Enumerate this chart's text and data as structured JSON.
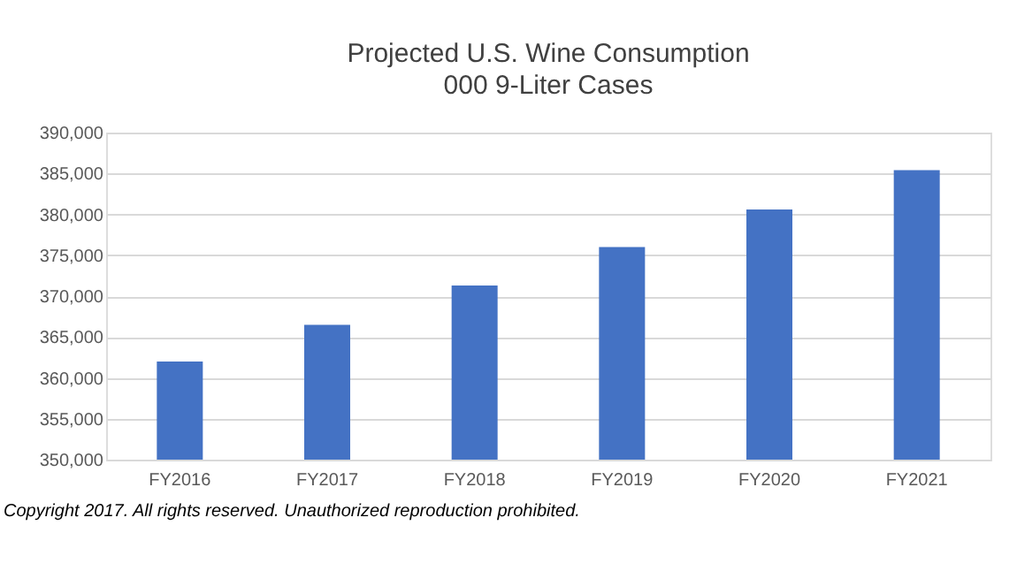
{
  "chart_data": {
    "type": "bar",
    "title": "Projected U.S. Wine Consumption",
    "subtitle": "000 9-Liter Cases",
    "categories": [
      "FY2016",
      "FY2017",
      "FY2018",
      "FY2019",
      "FY2020",
      "FY2021"
    ],
    "values": [
      362000,
      366500,
      371300,
      376000,
      380600,
      385400
    ],
    "color": "#4472c4",
    "ylim": [
      350000,
      390000
    ],
    "yticks": [
      {
        "value": 350000,
        "label": "350,000"
      },
      {
        "value": 355000,
        "label": "355,000"
      },
      {
        "value": 360000,
        "label": "360,000"
      },
      {
        "value": 365000,
        "label": "365,000"
      },
      {
        "value": 370000,
        "label": "370,000"
      },
      {
        "value": 375000,
        "label": "375,000"
      },
      {
        "value": 380000,
        "label": "380,000"
      },
      {
        "value": 385000,
        "label": "385,000"
      },
      {
        "value": 390000,
        "label": "390,000"
      }
    ],
    "grid": "y",
    "annotations": [
      "Copyright 2017.  All rights reserved. Unauthorized reproduction prohibited."
    ]
  }
}
